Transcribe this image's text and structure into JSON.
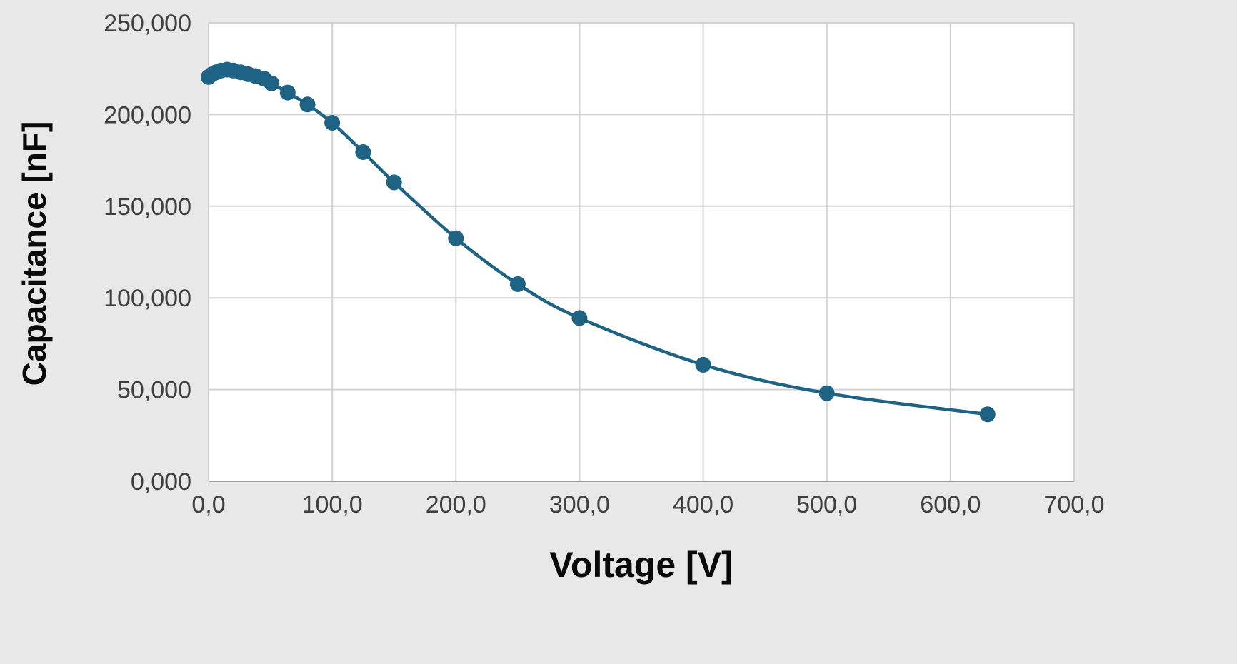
{
  "chart_data": {
    "type": "line",
    "title": "",
    "xlabel": "Voltage [V]",
    "ylabel": "Capacitance [nF]",
    "xlim": [
      0,
      700
    ],
    "ylim": [
      0,
      250
    ],
    "grid": true,
    "legend": "none",
    "x_ticks": [
      0,
      100,
      200,
      300,
      400,
      500,
      600,
      700
    ],
    "x_tick_labels": [
      "0,0",
      "100,0",
      "200,0",
      "300,0",
      "400,0",
      "500,0",
      "600,0",
      "700,0"
    ],
    "y_ticks": [
      0,
      50,
      100,
      150,
      200,
      250
    ],
    "y_tick_labels": [
      "0,000",
      "50,000",
      "100,000",
      "150,000",
      "200,000",
      "250,000"
    ],
    "series": [
      {
        "name": "Capacitance vs Voltage",
        "color": "#1e6384",
        "marker": "circle",
        "x": [
          0,
          3,
          6,
          10,
          15,
          20,
          26,
          32,
          38,
          45,
          51,
          64,
          80,
          100,
          125,
          150,
          200,
          250,
          300,
          400,
          500,
          630
        ],
        "y": [
          220.5,
          222.0,
          223.0,
          224.0,
          224.5,
          224.0,
          223.0,
          222.0,
          221.0,
          219.5,
          217.0,
          212.0,
          205.5,
          195.5,
          179.5,
          163.0,
          132.5,
          107.5,
          89.0,
          63.5,
          48.0,
          36.5
        ]
      }
    ],
    "colors": {
      "background": "#e8e8e8",
      "plot_bg": "#ffffff",
      "gridline": "#d2d2d2",
      "axis_line": "#9d9d9d",
      "tick_label": "#3f3f3f",
      "title": "#0a0a0a"
    }
  }
}
